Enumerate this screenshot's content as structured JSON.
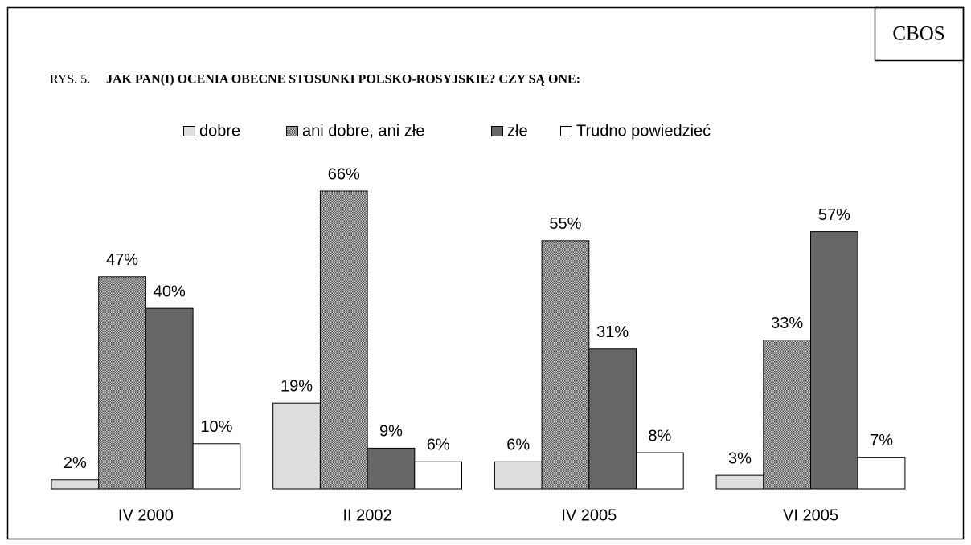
{
  "chart_data": {
    "type": "bar",
    "badge": "CBOS",
    "title_prefix": "RYS. 5.",
    "title": "JAK PAN(I) OCENIA OBECNE STOSUNKI POLSKO-ROSYJSKIE? CZY SĄ ONE:",
    "categories": [
      "IV 2000",
      "II 2002",
      "IV 2005",
      "VI 2005"
    ],
    "series": [
      {
        "name": "dobre",
        "color": "#dddddd",
        "values": [
          2,
          19,
          6,
          3
        ],
        "value_labels": [
          "2%",
          "19%",
          "6%",
          "3%"
        ]
      },
      {
        "name": "ani dobre, ani złe",
        "color": "#c8c8c8",
        "pattern": "dotted",
        "values": [
          47,
          66,
          55,
          33
        ],
        "value_labels": [
          "47%",
          "66%",
          "55%",
          "33%"
        ]
      },
      {
        "name": "złe",
        "color": "#666666",
        "values": [
          40,
          9,
          31,
          57
        ],
        "value_labels": [
          "40%",
          "9%",
          "31%",
          "57%"
        ]
      },
      {
        "name": "Trudno powiedzieć",
        "color": "#ffffff",
        "values": [
          10,
          6,
          8,
          7
        ],
        "value_labels": [
          "10%",
          "6%",
          "8%",
          "7%"
        ]
      }
    ],
    "legend": "top"
  }
}
